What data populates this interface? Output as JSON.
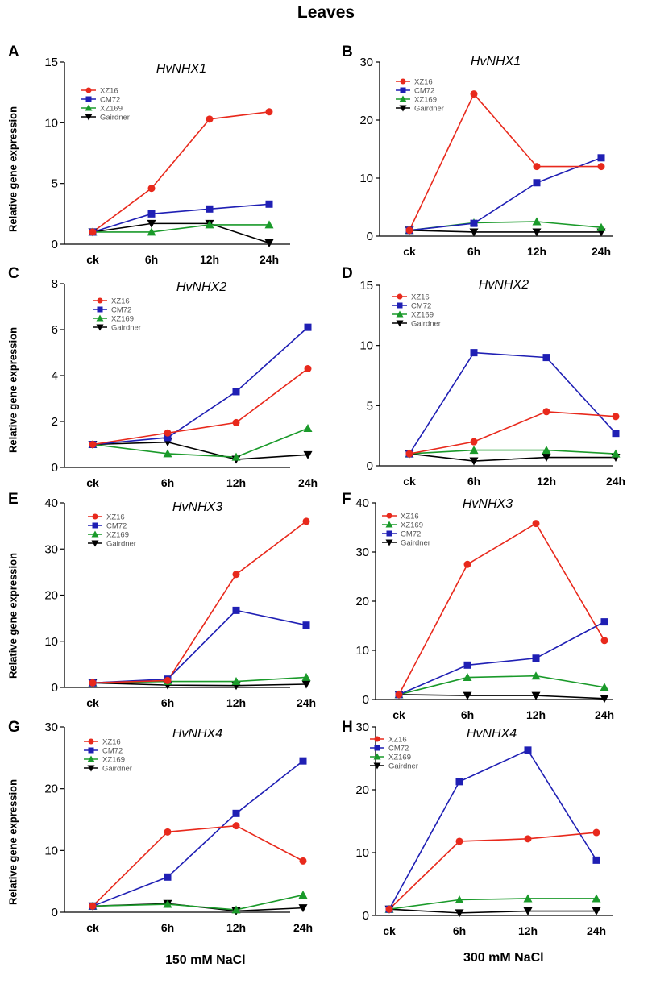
{
  "figure": {
    "title": "Leaves",
    "ylabel": "Relative gene expression",
    "footer_left": "150 mM NaCl",
    "footer_right": "300 mM NaCl",
    "colors": {
      "XZ16": "#e8291c",
      "CM72": "#1f1fb4",
      "XZ169": "#1a9a2a",
      "Gairdner": "#000000"
    }
  },
  "chart_data": [
    {
      "panel": "A",
      "type": "line",
      "title": "HvNHX1",
      "categories": [
        "ck",
        "6h",
        "12h",
        "24h"
      ],
      "ylim": [
        0,
        15
      ],
      "yticks": [
        0,
        5,
        10,
        15
      ],
      "legend": [
        "XZ16",
        "CM72",
        "XZ169",
        "Gairdner"
      ],
      "series": [
        {
          "name": "XZ16",
          "marker": "circle",
          "values": [
            1.0,
            4.6,
            10.3,
            10.9
          ]
        },
        {
          "name": "CM72",
          "marker": "square",
          "values": [
            1.0,
            2.5,
            2.9,
            3.3
          ]
        },
        {
          "name": "XZ169",
          "marker": "triangle-up",
          "values": [
            1.0,
            1.0,
            1.6,
            1.6
          ]
        },
        {
          "name": "Gairdner",
          "marker": "triangle-down",
          "values": [
            1.0,
            1.7,
            1.7,
            0.1
          ]
        }
      ]
    },
    {
      "panel": "B",
      "type": "line",
      "title": "HvNHX1",
      "categories": [
        "ck",
        "6h",
        "12h",
        "24h"
      ],
      "ylim": [
        0,
        30
      ],
      "yticks": [
        0,
        10,
        20,
        30
      ],
      "legend": [
        "XZ16",
        "CM72",
        "XZ169",
        "Gairdner"
      ],
      "series": [
        {
          "name": "XZ16",
          "marker": "circle",
          "values": [
            1.0,
            24.5,
            12.0,
            12.0
          ]
        },
        {
          "name": "CM72",
          "marker": "square",
          "values": [
            1.0,
            2.2,
            9.2,
            13.5
          ]
        },
        {
          "name": "XZ169",
          "marker": "triangle-up",
          "values": [
            1.0,
            2.3,
            2.5,
            1.5
          ]
        },
        {
          "name": "Gairdner",
          "marker": "triangle-down",
          "values": [
            1.0,
            0.7,
            0.7,
            0.7
          ]
        }
      ]
    },
    {
      "panel": "C",
      "type": "line",
      "title": "HvNHX2",
      "categories": [
        "ck",
        "6h",
        "12h",
        "24h"
      ],
      "ylim": [
        0,
        8
      ],
      "yticks": [
        0,
        2,
        4,
        6,
        8
      ],
      "legend": [
        "XZ16",
        "CM72",
        "XZ169",
        "Gairdner"
      ],
      "series": [
        {
          "name": "XZ16",
          "marker": "circle",
          "values": [
            1.0,
            1.5,
            1.95,
            4.3
          ]
        },
        {
          "name": "CM72",
          "marker": "square",
          "values": [
            1.0,
            1.3,
            3.3,
            6.1
          ]
        },
        {
          "name": "XZ169",
          "marker": "triangle-up",
          "values": [
            1.0,
            0.6,
            0.45,
            1.7
          ]
        },
        {
          "name": "Gairdner",
          "marker": "triangle-down",
          "values": [
            1.0,
            1.1,
            0.35,
            0.55
          ]
        }
      ]
    },
    {
      "panel": "D",
      "type": "line",
      "title": "HvNHX2",
      "categories": [
        "ck",
        "6h",
        "12h",
        "24h"
      ],
      "ylim": [
        0,
        15
      ],
      "yticks": [
        0,
        5,
        10,
        15
      ],
      "legend": [
        "XZ16",
        "CM72",
        "XZ169",
        "Gairdner"
      ],
      "series": [
        {
          "name": "XZ16",
          "marker": "circle",
          "values": [
            1.0,
            2.0,
            4.5,
            4.1
          ]
        },
        {
          "name": "CM72",
          "marker": "square",
          "values": [
            1.0,
            9.4,
            9.0,
            2.7
          ]
        },
        {
          "name": "XZ169",
          "marker": "triangle-up",
          "values": [
            1.0,
            1.3,
            1.3,
            1.0
          ]
        },
        {
          "name": "Gairdner",
          "marker": "triangle-down",
          "values": [
            1.0,
            0.4,
            0.7,
            0.7
          ]
        }
      ]
    },
    {
      "panel": "E",
      "type": "line",
      "title": "HvNHX3",
      "categories": [
        "ck",
        "6h",
        "12h",
        "24h"
      ],
      "ylim": [
        0,
        40
      ],
      "yticks": [
        0,
        10,
        20,
        30,
        40
      ],
      "legend": [
        "XZ16",
        "CM72",
        "XZ169",
        "Gairdner"
      ],
      "series": [
        {
          "name": "XZ16",
          "marker": "circle",
          "values": [
            1.0,
            1.5,
            24.5,
            36.0
          ]
        },
        {
          "name": "CM72",
          "marker": "square",
          "values": [
            1.0,
            1.8,
            16.7,
            13.5
          ]
        },
        {
          "name": "XZ169",
          "marker": "triangle-up",
          "values": [
            1.0,
            1.3,
            1.3,
            2.2
          ]
        },
        {
          "name": "Gairdner",
          "marker": "triangle-down",
          "values": [
            1.0,
            0.5,
            0.4,
            0.7
          ]
        }
      ]
    },
    {
      "panel": "F",
      "type": "line",
      "title": "HvNHX3",
      "categories": [
        "ck",
        "6h",
        "12h",
        "24h"
      ],
      "ylim": [
        0,
        40
      ],
      "yticks": [
        0,
        10,
        20,
        30,
        40
      ],
      "legend": [
        "XZ16",
        "XZ169",
        "CM72",
        "Gairdner"
      ],
      "series": [
        {
          "name": "XZ16",
          "marker": "circle",
          "values": [
            1.0,
            27.5,
            35.8,
            12.0
          ]
        },
        {
          "name": "CM72",
          "marker": "square",
          "values": [
            1.0,
            7.0,
            8.4,
            15.8
          ]
        },
        {
          "name": "XZ169",
          "marker": "triangle-up",
          "values": [
            1.0,
            4.5,
            4.8,
            2.5
          ]
        },
        {
          "name": "Gairdner",
          "marker": "triangle-down",
          "values": [
            1.0,
            0.8,
            0.8,
            0.2
          ]
        }
      ]
    },
    {
      "panel": "G",
      "type": "line",
      "title": "HvNHX4",
      "categories": [
        "ck",
        "6h",
        "12h",
        "24h"
      ],
      "ylim": [
        0,
        30
      ],
      "yticks": [
        0,
        10,
        20,
        30
      ],
      "legend": [
        "XZ16",
        "CM72",
        "XZ169",
        "Gairdner"
      ],
      "series": [
        {
          "name": "XZ16",
          "marker": "circle",
          "values": [
            1.0,
            13.0,
            14.0,
            8.3
          ]
        },
        {
          "name": "CM72",
          "marker": "square",
          "values": [
            1.0,
            5.7,
            16.0,
            24.5
          ]
        },
        {
          "name": "XZ169",
          "marker": "triangle-up",
          "values": [
            1.0,
            1.3,
            0.4,
            2.8
          ]
        },
        {
          "name": "Gairdner",
          "marker": "triangle-down",
          "values": [
            1.0,
            1.4,
            0.2,
            0.7
          ]
        }
      ]
    },
    {
      "panel": "H",
      "type": "line",
      "title": "HvNHX4",
      "categories": [
        "ck",
        "6h",
        "12h",
        "24h"
      ],
      "ylim": [
        0,
        30
      ],
      "yticks": [
        0,
        10,
        20,
        30
      ],
      "legend": [
        "XZ16",
        "CM72",
        "XZ169",
        "Gairdner"
      ],
      "series": [
        {
          "name": "XZ16",
          "marker": "circle",
          "values": [
            1.0,
            11.8,
            12.2,
            13.2
          ]
        },
        {
          "name": "CM72",
          "marker": "square",
          "values": [
            1.0,
            21.3,
            26.3,
            8.8
          ]
        },
        {
          "name": "XZ169",
          "marker": "triangle-up",
          "values": [
            1.0,
            2.5,
            2.7,
            2.7
          ]
        },
        {
          "name": "Gairdner",
          "marker": "triangle-down",
          "values": [
            1.0,
            0.4,
            0.7,
            0.7
          ]
        }
      ]
    }
  ]
}
